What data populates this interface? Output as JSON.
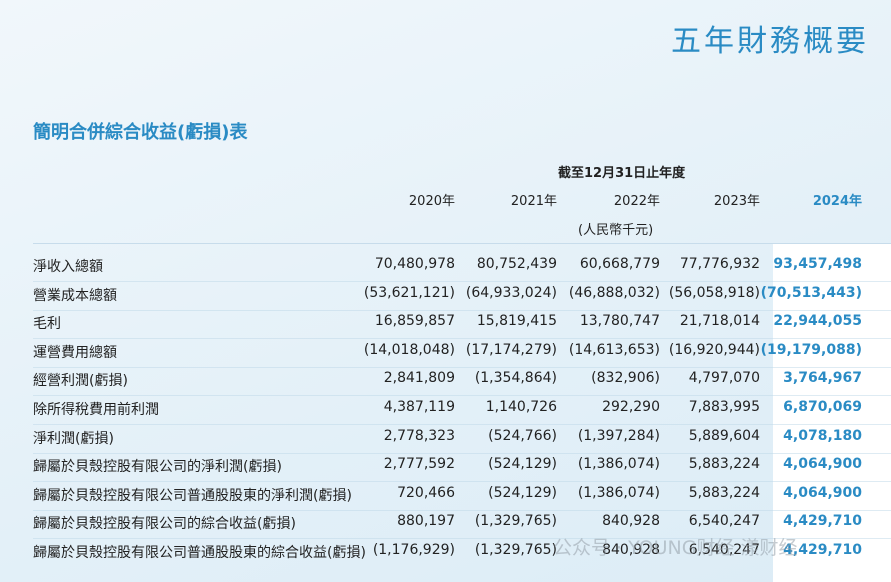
{
  "header": {
    "title": "五年財務概要"
  },
  "section_title": "簡明合併綜合收益(虧損)表",
  "table": {
    "period": "截至12月31日止年度",
    "unit": "(人民幣千元)",
    "years": [
      "2020年",
      "2021年",
      "2022年",
      "2023年",
      "2024年"
    ],
    "rows": [
      {
        "label": "淨收入總額",
        "values": [
          "70,480,978",
          "80,752,439",
          "60,668,779",
          "77,776,932",
          "93,457,498"
        ]
      },
      {
        "label": "營業成本總額",
        "values": [
          "(53,621,121)",
          "(64,933,024)",
          "(46,888,032)",
          "(56,058,918)",
          "(70,513,443)"
        ]
      },
      {
        "label": "毛利",
        "values": [
          "16,859,857",
          "15,819,415",
          "13,780,747",
          "21,718,014",
          "22,944,055"
        ]
      },
      {
        "label": "運營費用總額",
        "values": [
          "(14,018,048)",
          "(17,174,279)",
          "(14,613,653)",
          "(16,920,944)",
          "(19,179,088)"
        ]
      },
      {
        "label": "經營利潤(虧損)",
        "values": [
          "2,841,809",
          "(1,354,864)",
          "(832,906)",
          "4,797,070",
          "3,764,967"
        ]
      },
      {
        "label": "除所得稅費用前利潤",
        "values": [
          "4,387,119",
          "1,140,726",
          "292,290",
          "7,883,995",
          "6,870,069"
        ]
      },
      {
        "label": "淨利潤(虧損)",
        "values": [
          "2,778,323",
          "(524,766)",
          "(1,397,284)",
          "5,889,604",
          "4,078,180"
        ]
      },
      {
        "label": "歸屬於貝殼控股有限公司的淨利潤(虧損)",
        "values": [
          "2,777,592",
          "(524,129)",
          "(1,386,074)",
          "5,883,224",
          "4,064,900"
        ]
      },
      {
        "label": "歸屬於貝殼控股有限公司普通股股東的淨利潤(虧損)",
        "values": [
          "720,466",
          "(524,129)",
          "(1,386,074)",
          "5,883,224",
          "4,064,900"
        ]
      },
      {
        "label": "歸屬於貝殼控股有限公司的綜合收益(虧損)",
        "values": [
          "880,197",
          "(1,329,765)",
          "840,928",
          "6,540,247",
          "4,429,710"
        ]
      },
      {
        "label": "歸屬於貝殼控股有限公司普通股股東的綜合收益(虧損)",
        "values": [
          "(1,176,929)",
          "(1,329,765)",
          "840,928",
          "6,540,247",
          "4,429,710"
        ]
      }
    ]
  },
  "watermark": "公众号 · YOUNG财经 漾财经"
}
